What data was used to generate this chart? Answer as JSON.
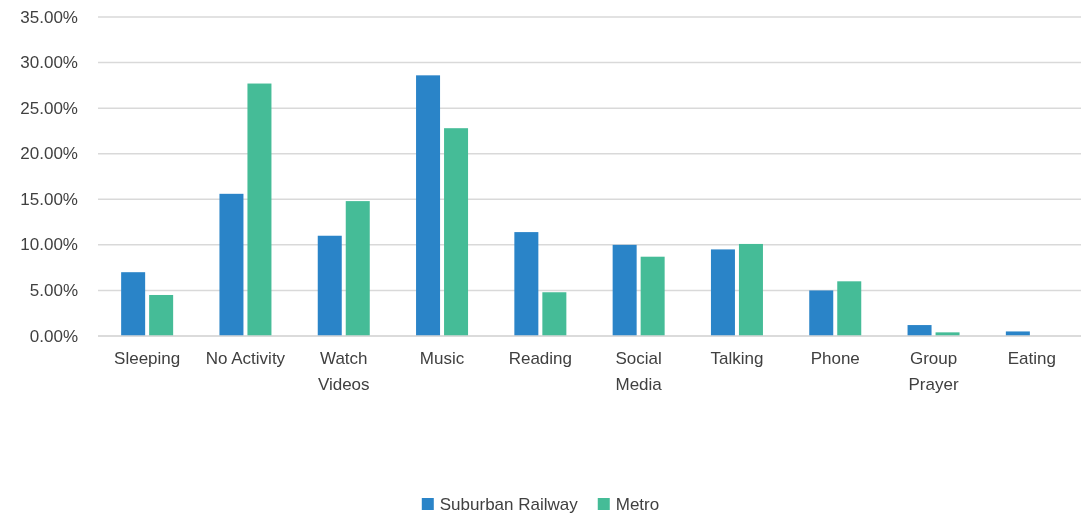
{
  "chart_data": {
    "type": "bar",
    "categories": [
      "Sleeping",
      "No Activity",
      "Watch Videos",
      "Music",
      "Reading",
      "Social Media",
      "Talking",
      "Phone",
      "Group Prayer",
      "Eating"
    ],
    "series": [
      {
        "name": "Suburban Railway",
        "color": "#2a84c8",
        "values": [
          7.0,
          15.6,
          11.0,
          28.6,
          11.4,
          10.0,
          9.5,
          5.0,
          1.2,
          0.5
        ]
      },
      {
        "name": "Metro",
        "color": "#45bc97",
        "values": [
          4.5,
          27.7,
          14.8,
          22.8,
          4.8,
          8.7,
          10.1,
          6.0,
          0.4,
          0
        ]
      }
    ],
    "ylim": [
      0,
      35
    ],
    "yticks": [
      {
        "value": 0,
        "label": "0.00%"
      },
      {
        "value": 5,
        "label": "5.00%"
      },
      {
        "value": 10,
        "label": "10.00%"
      },
      {
        "value": 15,
        "label": "15.00%"
      },
      {
        "value": 20,
        "label": "20.00%"
      },
      {
        "value": 25,
        "label": "25.00%"
      },
      {
        "value": 30,
        "label": "30.00%"
      },
      {
        "value": 35,
        "label": "35.00%"
      }
    ],
    "grid": "y",
    "legend": "bottom"
  }
}
